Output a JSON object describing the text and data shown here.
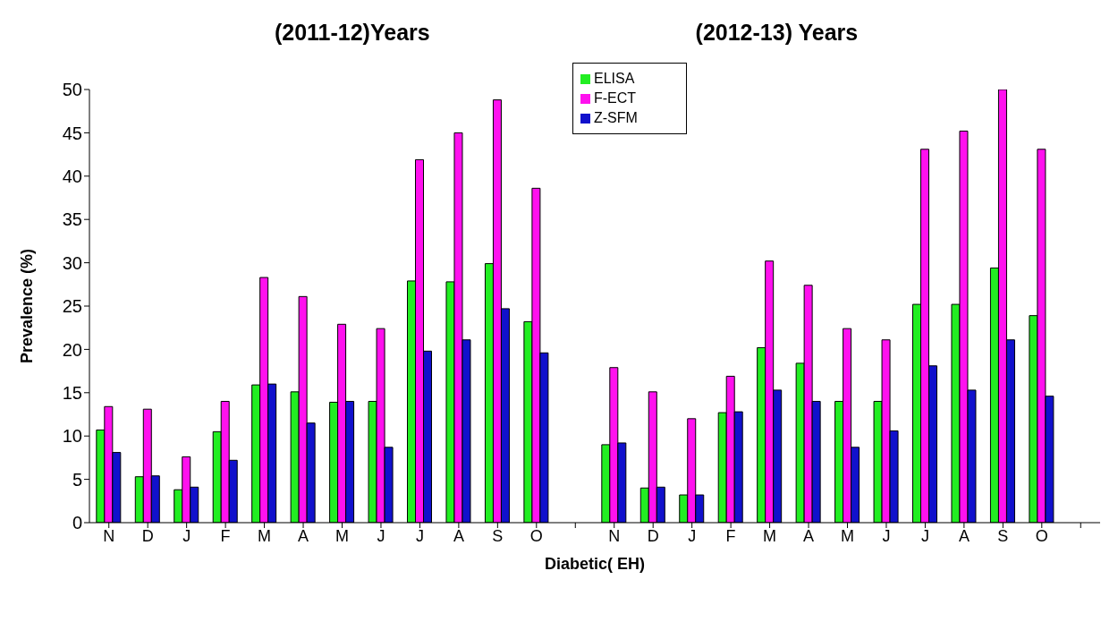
{
  "chart_data": {
    "type": "bar",
    "xlabel": "Diabetic( EH)",
    "ylabel": "Prevalence (%)",
    "annotations": [
      "(2011-12)Years",
      "(2012-13) Years"
    ],
    "categories": [
      "N",
      "D",
      "J",
      "F",
      "M",
      "A",
      "M",
      "J",
      "J",
      "A",
      "S",
      "O",
      null,
      "N",
      "D",
      "J",
      "F",
      "M",
      "A",
      "M",
      "J",
      "J",
      "A",
      "S",
      "O",
      null
    ],
    "series": [
      {
        "name": "ELISA",
        "color": "#22ee22",
        "values": [
          10.7,
          5.3,
          3.8,
          10.5,
          15.9,
          15.1,
          13.9,
          14.0,
          27.9,
          27.8,
          29.9,
          23.2,
          null,
          9.0,
          4.0,
          3.2,
          12.7,
          20.2,
          18.4,
          14.0,
          14.0,
          25.2,
          25.2,
          29.4,
          23.9,
          null
        ]
      },
      {
        "name": "F-ECT",
        "color": "#ff11ee",
        "values": [
          13.4,
          13.1,
          7.6,
          14.0,
          28.3,
          26.1,
          22.9,
          22.4,
          41.9,
          45.0,
          48.8,
          38.6,
          null,
          17.9,
          15.1,
          12.0,
          16.9,
          30.2,
          27.4,
          22.4,
          21.1,
          43.1,
          45.2,
          50.0,
          43.1,
          null
        ]
      },
      {
        "name": "Z-SFM",
        "color": "#1111cc",
        "values": [
          8.1,
          5.4,
          4.1,
          7.2,
          16.0,
          11.5,
          14.0,
          8.7,
          19.8,
          21.1,
          24.7,
          19.6,
          null,
          9.2,
          4.1,
          3.2,
          12.8,
          15.3,
          14.0,
          8.7,
          10.6,
          18.1,
          15.3,
          21.1,
          14.6,
          null
        ]
      }
    ],
    "ylim": [
      0,
      50
    ],
    "yticks": [
      0,
      5,
      10,
      15,
      20,
      25,
      30,
      35,
      40,
      45,
      50
    ],
    "grid": false,
    "legend": "top"
  }
}
